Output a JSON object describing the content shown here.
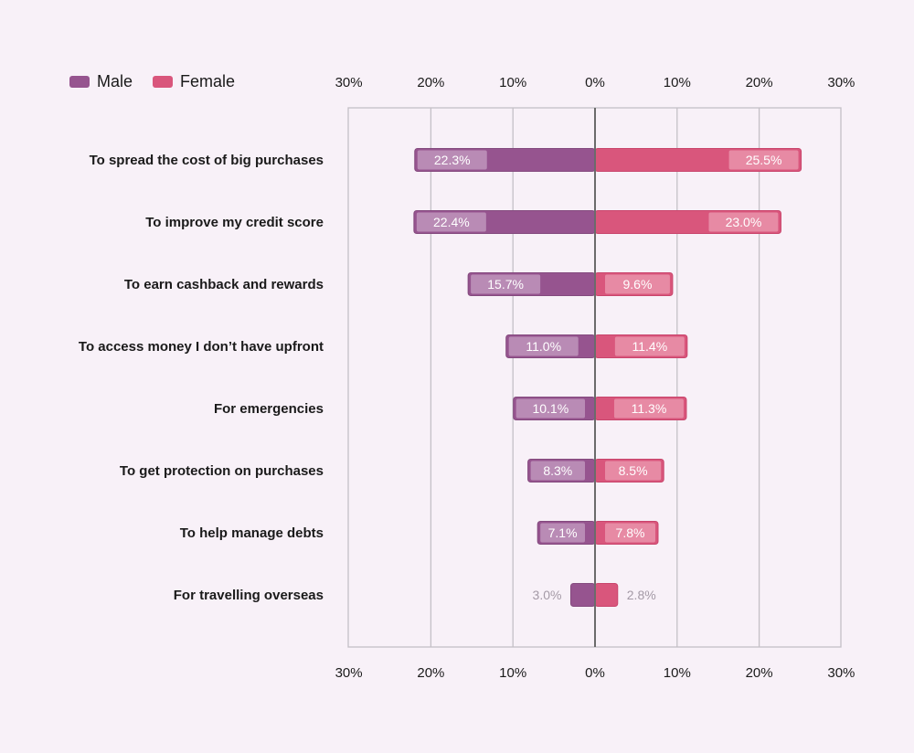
{
  "chart_data": {
    "type": "bar",
    "orientation": "horizontal-diverging",
    "categories": [
      "To spread the cost of big purchases",
      "To improve my credit score",
      "To earn cashback and rewards",
      "To access money I don’t have upfront",
      "For emergencies",
      "To get protection on purchases",
      "To help manage debts",
      "For travelling overseas"
    ],
    "series": [
      {
        "name": "Male",
        "color": "#96548f",
        "label_color": "#b98bb5",
        "side": "left",
        "values": [
          22.3,
          22.4,
          15.7,
          11.0,
          10.1,
          8.3,
          7.1,
          3.0
        ],
        "labels": [
          "22.3%",
          "22.4%",
          "15.7%",
          "11.0%",
          "10.1%",
          "8.3%",
          "7.1%",
          "3.0%"
        ]
      },
      {
        "name": "Female",
        "color": "#d9567c",
        "label_color": "#e78aa4",
        "side": "right",
        "values": [
          25.5,
          23.0,
          9.6,
          11.4,
          11.3,
          8.5,
          7.8,
          2.8
        ],
        "labels": [
          "25.5%",
          "23.0%",
          "9.6%",
          "11.4%",
          "11.3%",
          "8.5%",
          "7.8%",
          "2.8%"
        ]
      }
    ],
    "xlim": [
      -30,
      30
    ],
    "tick_labels_left": [
      "30%",
      "20%",
      "10%",
      "0%"
    ],
    "tick_labels_right": [
      "10%",
      "20%",
      "30%"
    ],
    "grid": true,
    "legend": "top-left"
  }
}
